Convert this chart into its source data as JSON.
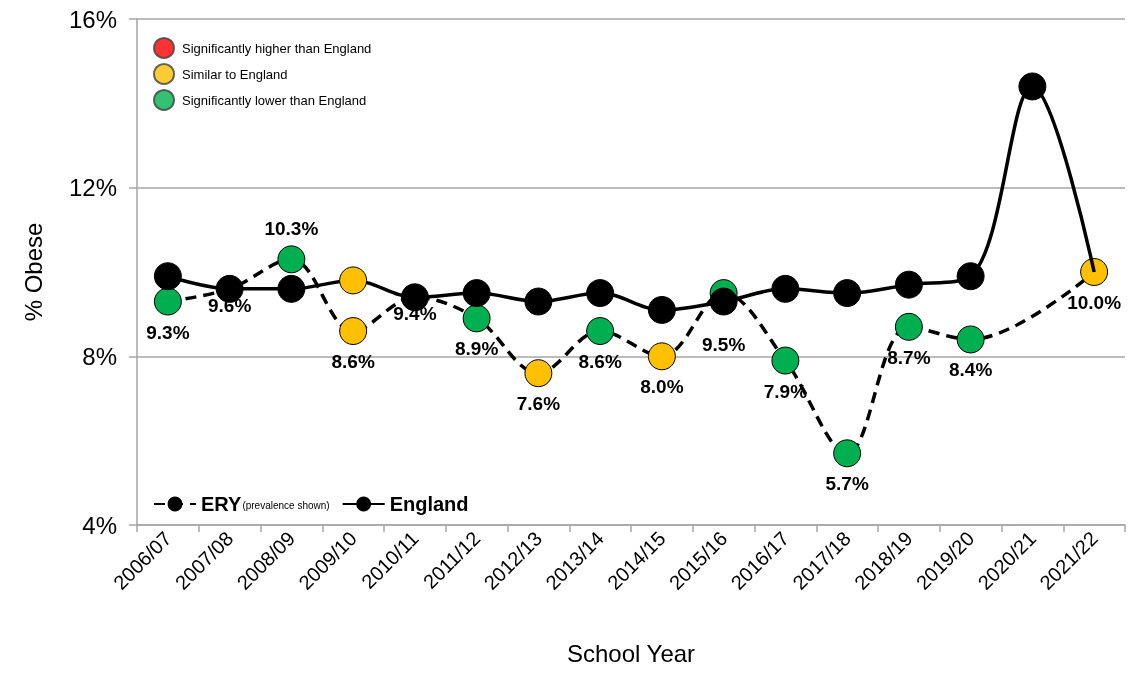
{
  "chart_data": {
    "type": "line",
    "xlabel": "School Year",
    "ylabel": "% Obese",
    "categories": [
      "2006/07",
      "2007/08",
      "2008/09",
      "2009/10",
      "2010/11",
      "2011/12",
      "2012/13",
      "2013/14",
      "2014/15",
      "2015/16",
      "2016/17",
      "2017/18",
      "2018/19",
      "2019/20",
      "2020/21",
      "2021/22"
    ],
    "ylim": [
      4,
      16
    ],
    "yticks": [
      {
        "value": 4,
        "label": "4%"
      },
      {
        "value": 8,
        "label": "8%"
      },
      {
        "value": 12,
        "label": "12%"
      },
      {
        "value": 16,
        "label": "16%"
      }
    ],
    "grid": "y",
    "legend": "left",
    "marker": "circle",
    "series": [
      {
        "name": "Significantly higher than England",
        "type": "scatter",
        "color": "#ff0000",
        "values": [
          null,
          null,
          null,
          null,
          null,
          null,
          null,
          null,
          null,
          null,
          null,
          null,
          null,
          null,
          null,
          null
        ]
      },
      {
        "name": "Similar to England",
        "type": "scatter",
        "color": "#ffc000",
        "values": [
          null,
          null,
          null,
          null,
          null,
          null,
          null,
          null,
          null,
          null,
          null,
          null,
          null,
          null,
          null,
          null
        ]
      },
      {
        "name": "Significantly lower than England",
        "type": "scatter",
        "color": "#00b050",
        "values": [
          null,
          null,
          null,
          null,
          null,
          null,
          null,
          null,
          null,
          null,
          null,
          null,
          null,
          null,
          null,
          null
        ]
      },
      {
        "name": "ERY$_{(prevalence shown)}$",
        "color": "#000000",
        "line_style": "dashed",
        "values": [
          9.3,
          9.6,
          10.3,
          8.6,
          9.4,
          8.9,
          7.6,
          8.6,
          8.0,
          9.5,
          7.9,
          5.7,
          8.7,
          8.4,
          null,
          10.0
        ],
        "colors": [
          "#00b050",
          null,
          "#00b050",
          "#ffc000",
          null,
          "#00b050",
          "#ffc000",
          "#00b050",
          "#ffc000",
          "#00b050",
          "#00b050",
          "#00b050",
          "#00b050",
          "#00b050",
          null,
          "#ffc000"
        ],
        "value_labels": [
          "9.3%",
          "9.6%",
          "10.3%",
          "8.6%",
          "9.4%",
          "8.9%",
          "7.6%",
          "8.6%",
          "8.0%",
          "9.5%",
          "7.9%",
          "5.7%",
          "8.7%",
          "8.4%",
          null,
          "10.0%"
        ]
      },
      {
        "name": "England",
        "color": "#000000",
        "line_style": "solid",
        "values": [
          9.9,
          9.6,
          9.6,
          9.8,
          9.4,
          9.5,
          9.3,
          9.5,
          9.1,
          9.3,
          9.6,
          9.5,
          9.7,
          9.9,
          14.4,
          10.0
        ],
        "colors": [
          "#000000",
          "#000000",
          "#000000",
          "#ffc000",
          "#000000",
          "#000000",
          "#000000",
          "#000000",
          "#000000",
          "#000000",
          "#000000",
          "#000000",
          "#000000",
          "#000000",
          "#000000",
          null
        ]
      }
    ]
  }
}
